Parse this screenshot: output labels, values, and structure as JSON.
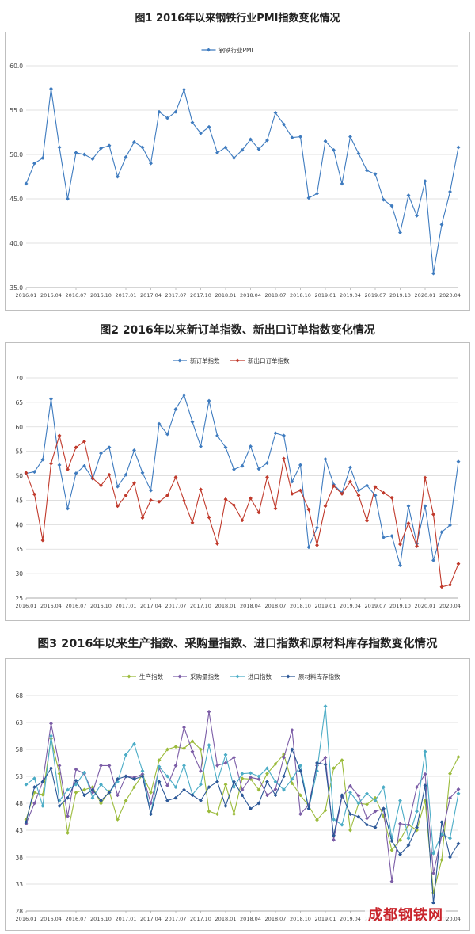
{
  "figures": [
    {
      "title": "图1  2016年以来钢铁行业PMI指数变化情况"
    },
    {
      "title": "图2    2016年以来新订单指数、新出口订单指数变化情况"
    },
    {
      "title": "图3  2016年以来生产指数、采购量指数、进口指数和原材料库存指数变化情况"
    }
  ],
  "watermark": "成都钢铁网",
  "chart_data": [
    {
      "type": "line",
      "title": "图1  2016年以来钢铁行业PMI指数变化情况",
      "x_tick_labels": [
        "2016.01",
        "2016.04",
        "2016.07",
        "2016.10",
        "2017.01",
        "2017.04",
        "2017.07",
        "2017.10",
        "2018.01",
        "2018.04",
        "2018.07",
        "2018.10",
        "2019.01",
        "2019.04",
        "2019.07",
        "2019.10",
        "2020.01",
        "2020.04"
      ],
      "ylim": [
        35,
        60
      ],
      "yticks": [
        "35.0",
        "40.0",
        "45.0",
        "50.0",
        "55.0",
        "60.0"
      ],
      "grid": true,
      "legend": "top",
      "series": [
        {
          "name": "钢铁行业PMI",
          "color": "#3e7bbf",
          "values": [
            46.7,
            49.0,
            49.6,
            57.4,
            50.8,
            45.0,
            50.2,
            50.0,
            49.5,
            50.7,
            51.0,
            47.5,
            49.7,
            51.4,
            50.8,
            49.0,
            54.8,
            54.1,
            54.8,
            57.3,
            53.6,
            52.4,
            53.1,
            50.2,
            50.8,
            49.6,
            50.5,
            51.7,
            50.6,
            51.6,
            54.7,
            53.4,
            51.9,
            52.0,
            45.1,
            45.6,
            51.5,
            50.5,
            46.7,
            52.0,
            50.1,
            48.2,
            47.8,
            44.9,
            44.2,
            41.2,
            45.4,
            43.1,
            47.0,
            36.6,
            42.1,
            45.8,
            50.8
          ]
        }
      ]
    },
    {
      "type": "line",
      "title": "图2    2016年以来新订单指数、新出口订单指数变化情况",
      "x_tick_labels": [
        "2016.01",
        "2016.04",
        "2016.07",
        "2016.10",
        "2017.01",
        "2017.04",
        "2017.07",
        "2017.10",
        "2018.01",
        "2018.04",
        "2018.07",
        "2018.10",
        "2019.01",
        "2019.04",
        "2019.07",
        "2019.10",
        "2020.01",
        "2020.04"
      ],
      "ylim": [
        25,
        70
      ],
      "yticks": [
        "25",
        "30",
        "35",
        "40",
        "45",
        "50",
        "55",
        "60",
        "65",
        "70"
      ],
      "grid": true,
      "legend": "top",
      "series": [
        {
          "name": "新订单指数",
          "color": "#3e7bbf",
          "values": [
            50.5,
            50.8,
            53.3,
            65.7,
            52.2,
            43.3,
            50.5,
            52.0,
            49.4,
            54.6,
            55.8,
            47.8,
            50.2,
            55.2,
            50.6,
            47.0,
            60.6,
            58.5,
            63.6,
            66.5,
            61.0,
            56.0,
            65.3,
            58.2,
            55.8,
            51.3,
            52.0,
            56.0,
            51.4,
            52.6,
            58.7,
            58.2,
            48.8,
            52.2,
            35.4,
            39.4,
            53.4,
            48.2,
            46.5,
            51.7,
            47.0,
            48.0,
            46.0,
            37.4,
            37.7,
            31.7,
            43.8,
            36.1,
            43.8,
            32.7,
            38.5,
            39.9,
            52.9
          ]
        },
        {
          "name": "新出口订单指数",
          "color": "#c0392b",
          "values": [
            50.6,
            46.2,
            36.8,
            52.5,
            58.2,
            51.3,
            55.8,
            57.0,
            49.5,
            48.0,
            50.2,
            43.8,
            46.0,
            48.5,
            41.4,
            45.0,
            44.7,
            46.0,
            49.7,
            44.9,
            40.4,
            47.2,
            41.5,
            36.1,
            45.2,
            44.0,
            40.9,
            45.4,
            42.5,
            49.7,
            43.3,
            53.5,
            46.3,
            47.0,
            43.1,
            35.8,
            43.8,
            47.9,
            46.3,
            48.8,
            46.0,
            40.8,
            47.7,
            46.5,
            45.5,
            36.0,
            40.3,
            35.6,
            49.6,
            42.1,
            27.3,
            27.7,
            32.0
          ]
        }
      ]
    },
    {
      "type": "line",
      "title": "图3  2016年以来生产指数、采购量指数、进口指数和原材料库存指数变化情况",
      "x_tick_labels": [
        "2016.01",
        "2016.04",
        "2016.07",
        "2016.10",
        "2017.01",
        "2017.04",
        "2017.07",
        "2017.10",
        "2018.01",
        "2018.04",
        "2018.07",
        "2018.10",
        "2019.01",
        "2019.04",
        "2019.07",
        "2019.10",
        "2020.01",
        "2020.04"
      ],
      "ylim": [
        28,
        68
      ],
      "yticks": [
        "28",
        "33",
        "38",
        "43",
        "48",
        "53",
        "58",
        "63",
        "68"
      ],
      "grid": true,
      "legend": "top",
      "series": [
        {
          "name": "生产指数",
          "color": "#9bbb3b",
          "values": [
            45.0,
            50.0,
            49.6,
            60.0,
            53.5,
            42.5,
            50.0,
            50.5,
            51.0,
            48.0,
            50.2,
            45.0,
            48.5,
            51.0,
            53.3,
            50.0,
            56.0,
            58.0,
            58.5,
            58.2,
            59.5,
            58.0,
            46.5,
            46.0,
            51.5,
            46.0,
            52.6,
            52.5,
            50.5,
            53.5,
            55.3,
            57.1,
            51.7,
            49.5,
            47.5,
            44.9,
            46.7,
            54.5,
            56.0,
            43.0,
            48.0,
            47.8,
            49.0,
            45.6,
            39.3,
            41.2,
            44.0,
            43.0,
            48.5,
            31.4,
            37.5,
            53.5,
            56.6
          ]
        },
        {
          "name": "采购量指数",
          "color": "#7b5ca6",
          "values": [
            44.2,
            48.0,
            52.0,
            62.8,
            55.0,
            45.6,
            54.3,
            53.5,
            50.0,
            55.0,
            55.0,
            49.5,
            53.0,
            52.8,
            53.4,
            48.0,
            54.5,
            51.3,
            55.0,
            62.1,
            57.6,
            54.0,
            65.0,
            55.0,
            55.5,
            56.5,
            50.5,
            52.8,
            52.5,
            49.5,
            50.6,
            56.5,
            61.6,
            46.0,
            47.7,
            55.0,
            56.5,
            41.2,
            49.2,
            51.2,
            49.4,
            45.2,
            46.5,
            47.0,
            33.5,
            44.2,
            44.0,
            51.0,
            53.4,
            35.0,
            42.0,
            49.0,
            50.6
          ]
        },
        {
          "name": "进口指数",
          "color": "#4bacc6",
          "values": [
            51.5,
            52.6,
            47.5,
            60.5,
            48.5,
            50.5,
            51.5,
            53.7,
            49.0,
            51.5,
            50.0,
            52.0,
            57.0,
            59.0,
            54.0,
            46.0,
            54.8,
            53.0,
            51.0,
            55.0,
            49.6,
            51.5,
            58.8,
            52.0,
            57.0,
            51.0,
            53.5,
            53.6,
            53.0,
            54.5,
            52.0,
            50.5,
            52.5,
            55.0,
            47.0,
            54.0,
            66.0,
            45.0,
            44.0,
            50.0,
            48.0,
            49.8,
            48.5,
            51.0,
            41.5,
            48.5,
            41.5,
            46.5,
            57.6,
            38.7,
            42.3,
            41.5,
            49.8
          ]
        },
        {
          "name": "原材料库存指数",
          "color": "#2b5797",
          "values": [
            44.5,
            51.0,
            52.0,
            54.5,
            47.5,
            49.0,
            52.2,
            49.5,
            50.5,
            48.5,
            50.0,
            52.5,
            53.0,
            52.5,
            53.0,
            46.0,
            52.0,
            48.5,
            49.0,
            50.5,
            49.5,
            48.5,
            51.0,
            52.0,
            47.5,
            52.0,
            49.5,
            47.0,
            48.0,
            52.0,
            49.5,
            53.0,
            58.0,
            54.0,
            47.0,
            55.5,
            55.2,
            42.0,
            49.5,
            46.0,
            45.5,
            44.0,
            43.5,
            47.0,
            41.0,
            38.5,
            40.2,
            43.5,
            51.3,
            29.5,
            44.5,
            38.0,
            40.5
          ]
        }
      ]
    }
  ]
}
